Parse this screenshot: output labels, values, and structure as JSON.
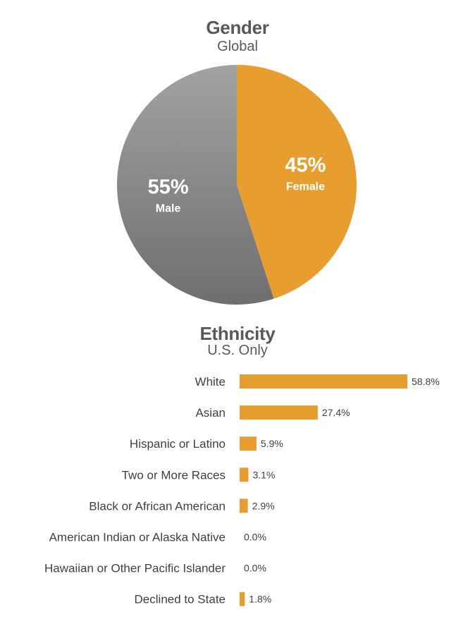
{
  "chart_data": [
    {
      "type": "pie",
      "title": "Gender",
      "subtitle": "Global",
      "slices": [
        {
          "label": "Female",
          "value": 45,
          "value_label": "45%",
          "color": "#e89e2f"
        },
        {
          "label": "Male",
          "value": 55,
          "value_label": "55%",
          "color": "#807f80"
        }
      ]
    },
    {
      "type": "bar",
      "orientation": "horizontal",
      "title": "Ethnicity",
      "subtitle": "U.S. Only",
      "categories": [
        "White",
        "Asian",
        "Hispanic or Latino",
        "Two or More Races",
        "Black or African American",
        "American Indian or Alaska Native",
        "Hawaiian or Other Pacific Islander",
        "Declined to State"
      ],
      "values": [
        58.8,
        27.4,
        5.9,
        3.1,
        2.9,
        0.0,
        0.0,
        1.8
      ],
      "value_labels": [
        "58.8%",
        "27.4%",
        "5.9%",
        "3.1%",
        "2.9%",
        "0.0%",
        "0.0%",
        "1.8%"
      ],
      "bar_color": "#e89e2f",
      "grid": false
    }
  ]
}
